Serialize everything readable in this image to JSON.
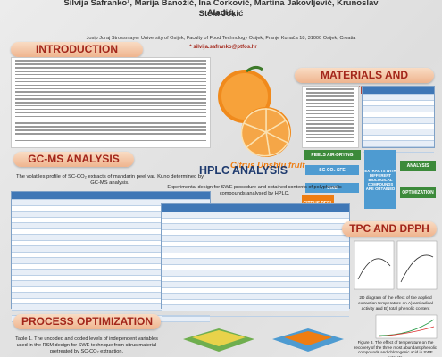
{
  "header": {
    "authors": "Silvija Šafranko¹, Marija Banožić, Ina Ćorković, Martina Jakovljević, Krunoslav Aladić,",
    "authors_2": "Stela Jokić",
    "affiliation": "Josip Juraj Strossmayer University of Osijek, Faculty of Food Technology Osijek, Franje Kuhača 18, 31000 Osijek, Croatia",
    "email": "* silvija.safranko@ptfos.hr"
  },
  "sections": {
    "introduction": "INTRODUCTION",
    "methods": "MATERIALS AND METHODS",
    "gcms": "GC-MS ANALYSIS",
    "hplc": "HPLC ANALYSIS",
    "tpc": "TPC AND DPPH",
    "optimization": "PROCESS OPTIMIZATION"
  },
  "fruit_label": "Citrus Unshiu fruit",
  "flow": {
    "drying": "PEELS AIR-DRYING",
    "sfe": "SC-CO₂ SFE",
    "swe": "SWE",
    "peel": "CITRUS PEEL",
    "extracts": "EXTRACTS WITH DIFFERENT BIOLOGICAL COMPOUNDS ARE OBTAINED",
    "analysis": "ANALYSIS",
    "optimization": "OPTIMIZATION"
  },
  "captions": {
    "gcms": "The volatiles profile of SC-CO₂ extracts of mandarin peel var. Kuno determined by GC-MS analysis.",
    "hplc": "Experimental design for SWE procedure and obtained contents of polyphenolic compounds analysed by HPLC.",
    "table1": "Table 1. The uncoded and coded levels of independent variables used in the RSM design for SWE technique from citrus material pretreated by SC-CO₂ extraction.",
    "diagram": "2D diagram of the effect of the applied extraction temperature on A) antiradical activity and B) total phenolic content",
    "figure3": "Figure 3. The effect of temperature on the recovery of the three most abundant phenolic compounds and chlorogenic acid in SWE extracts."
  }
}
